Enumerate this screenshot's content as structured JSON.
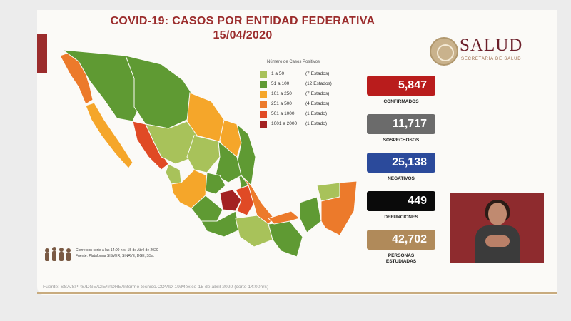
{
  "title_line1": "COVID-19: CASOS POR ENTIDAD FEDERATIVA",
  "title_line2": "15/04/2020",
  "logo": {
    "name": "SALUD",
    "subtitle": "SECRETARÍA DE SALUD"
  },
  "legend": {
    "title": "Número de Casos Positivos",
    "items": [
      {
        "range": "1 a 50",
        "count": "(7 Estados)",
        "color": "#a8c25a"
      },
      {
        "range": "51 a 100",
        "count": "(12 Estados)",
        "color": "#5f9a33"
      },
      {
        "range": "101 a 250",
        "count": "(7 Estados)",
        "color": "#f5a62a"
      },
      {
        "range": "251 a 500",
        "count": "(4 Estados)",
        "color": "#ec7a2b"
      },
      {
        "range": "501 a 1000",
        "count": "(1 Estado)",
        "color": "#e04a25"
      },
      {
        "range": "1001 a 2000",
        "count": "(1 Estado)",
        "color": "#a32222"
      }
    ]
  },
  "stats": [
    {
      "value": "5,847",
      "label": "CONFIRMADOS",
      "color": "#b91c1c"
    },
    {
      "value": "11,717",
      "label": "SOSPECHOSOS",
      "color": "#6b6b6b"
    },
    {
      "value": "25,138",
      "label": "NEGATIVOS",
      "color": "#2b4a9b"
    },
    {
      "value": "449",
      "label": "DEFUNCIONES",
      "color": "#0a0a0a"
    },
    {
      "value": "42,702",
      "label": "PERSONAS\nESTUDIADAS",
      "color": "#b08a5a"
    }
  ],
  "notes": {
    "line1": "Cierre con corte a las 14:00 hrs, 15 de Abril de 2020",
    "line2": "Fuente: Plataforma SISVER, SINAVE, DGE, SSa."
  },
  "footer": "Fuente: SSA/SPPS/DGE/DIE/InDRE/Informe técnico.COVID-19/México-15 de abril 2020 (corte 14:00hrs)"
}
